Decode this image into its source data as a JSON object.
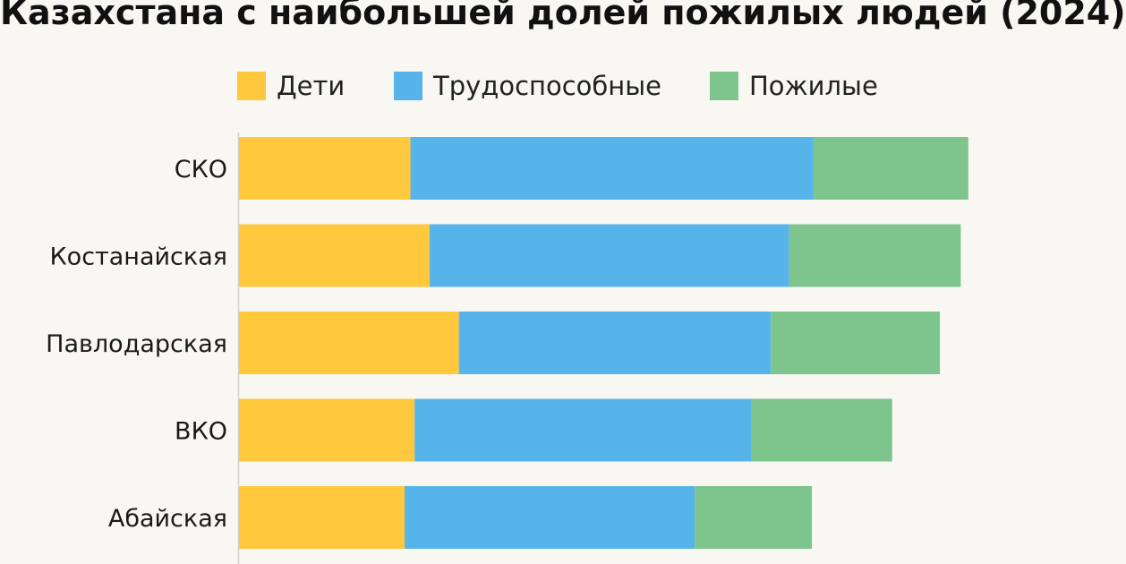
{
  "chart_data": {
    "type": "bar",
    "orientation": "horizontal",
    "stacked": true,
    "title": "Казахстана с наибольшей долей пожилых людей (2024)",
    "categories": [
      "СКО",
      "Костанайская",
      "Павлодарская",
      "ВКО",
      "Абайская"
    ],
    "series": [
      {
        "name": "Дети",
        "color": "#ffc83d",
        "values": [
          20.5,
          22.8,
          26.3,
          21.0,
          19.8
        ]
      },
      {
        "name": "Трудоспособные",
        "color": "#57b4ea",
        "values": [
          48.2,
          43.0,
          37.3,
          40.3,
          34.7
        ]
      },
      {
        "name": "Пожилые",
        "color": "#7dc48d",
        "values": [
          18.5,
          20.5,
          20.2,
          16.8,
          14.0
        ]
      }
    ],
    "xlim": [
      0,
      93
    ],
    "xlabel": "",
    "ylabel": "",
    "grid": false,
    "legend_position": "top"
  }
}
